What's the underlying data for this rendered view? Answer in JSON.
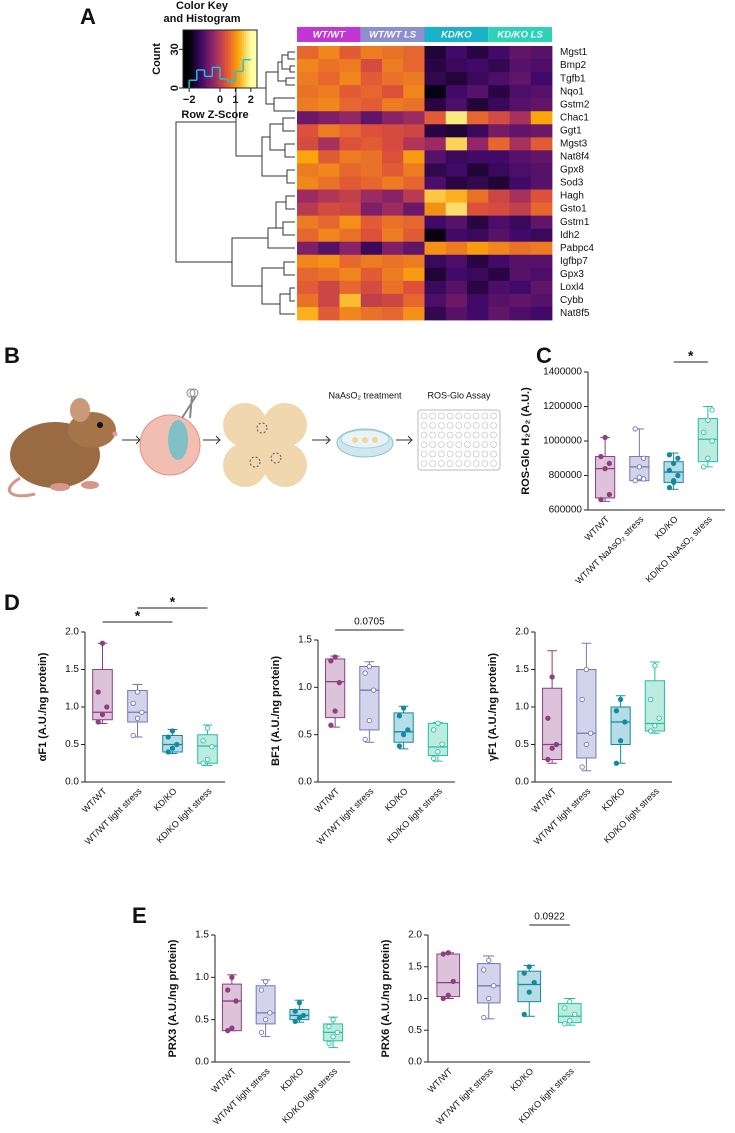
{
  "panels": [
    "A",
    "B",
    "C",
    "D",
    "E"
  ],
  "schematic": {
    "treatment": "NaAsO₂ treatment",
    "assay": "ROS-Glo Assay"
  },
  "chart_data": [
    {
      "type": "heatmap",
      "colormap": [
        "#000004",
        "#420a68",
        "#932667",
        "#dd513a",
        "#fca50a",
        "#fcffa4"
      ],
      "zlim": [
        -2,
        2
      ],
      "groups": [
        {
          "name": "WT/WT",
          "color": "#c236d6",
          "span": 3
        },
        {
          "name": "WT/WT LS",
          "color": "#8e8fcf",
          "span": 3
        },
        {
          "name": "KD/KO",
          "color": "#19b2c6",
          "span": 3
        },
        {
          "name": "KD/KO LS",
          "color": "#2dd3b7",
          "span": 3
        }
      ],
      "rows": [
        "Mgst1",
        "Bmp2",
        "Tgfb1",
        "Nqo1",
        "Gstm2",
        "Chac1",
        "Ggt1",
        "Mgst3",
        "Nat8f4",
        "Gpx8",
        "Sod3",
        "Hagh",
        "Gsto1",
        "Gstm1",
        "Idh2",
        "Pabpc4",
        "Igfbp7",
        "Gpx3",
        "Loxl4",
        "Cybb",
        "Nat8f5"
      ],
      "values": [
        [
          0.6,
          0.9,
          0.5,
          0.8,
          0.7,
          0.6,
          -1.6,
          -1.2,
          -1.5,
          -1.2,
          -0.9,
          -1.0
        ],
        [
          0.9,
          0.7,
          0.8,
          0.3,
          0.8,
          0.6,
          -1.5,
          -1.3,
          -1.2,
          -1.4,
          -1.0,
          -1.1
        ],
        [
          0.8,
          0.6,
          0.9,
          0.5,
          0.7,
          0.8,
          -1.4,
          -1.6,
          -1.3,
          -1.1,
          -0.9,
          -1.2
        ],
        [
          0.7,
          0.8,
          0.5,
          0.6,
          0.4,
          0.9,
          -1.9,
          -1.2,
          -1.0,
          -1.5,
          -1.1,
          -1.0
        ],
        [
          0.8,
          0.9,
          0.6,
          0.5,
          0.8,
          0.7,
          -1.5,
          -1.1,
          -1.6,
          -1.3,
          -1.0,
          -0.9
        ],
        [
          -0.8,
          -0.6,
          -0.4,
          -0.9,
          -0.5,
          -0.3,
          0.5,
          1.8,
          0.6,
          0.3,
          -0.2,
          1.2
        ],
        [
          0.4,
          0.8,
          0.6,
          0.4,
          0.3,
          0.2,
          -1.5,
          -1.6,
          -1.3,
          -0.7,
          -0.9,
          -0.8
        ],
        [
          0.3,
          -0.2,
          0.4,
          0.5,
          0.3,
          -0.1,
          -0.3,
          1.6,
          -0.4,
          0.6,
          -0.2,
          0.5
        ],
        [
          1.2,
          0.5,
          0.8,
          0.7,
          0.4,
          1.1,
          -1.0,
          -1.3,
          -1.2,
          -1.2,
          -1.0,
          -0.9
        ],
        [
          0.8,
          0.9,
          0.6,
          0.7,
          0.5,
          0.8,
          -1.4,
          -1.2,
          -1.6,
          -1.3,
          -1.1,
          -1.0
        ],
        [
          0.9,
          0.7,
          0.5,
          0.6,
          0.8,
          0.6,
          -1.1,
          -1.5,
          -1.4,
          -1.6,
          -1.2,
          -1.0
        ],
        [
          -0.3,
          -0.1,
          0.1,
          -0.3,
          -0.5,
          0.0,
          1.5,
          1.3,
          0.7,
          0.2,
          -0.2,
          0.4
        ],
        [
          0.0,
          0.3,
          0.2,
          -0.6,
          -0.3,
          -0.8,
          1.0,
          1.7,
          0.4,
          0.3,
          0.1,
          0.6
        ],
        [
          0.8,
          0.6,
          1.0,
          0.5,
          0.7,
          0.6,
          -1.2,
          -1.0,
          -1.5,
          -1.1,
          -1.3,
          -0.9
        ],
        [
          0.6,
          0.9,
          0.7,
          0.4,
          0.8,
          0.5,
          -1.9,
          -1.2,
          -1.3,
          -1.0,
          -1.2,
          -1.3
        ],
        [
          -0.6,
          -1.0,
          -0.5,
          -1.3,
          -0.6,
          -0.9,
          1.0,
          0.8,
          1.1,
          0.9,
          0.7,
          0.8
        ],
        [
          0.9,
          1.0,
          0.6,
          0.8,
          0.7,
          0.8,
          -1.3,
          -1.1,
          -1.5,
          -1.2,
          -1.0,
          -1.0
        ],
        [
          0.6,
          0.7,
          0.9,
          0.5,
          0.8,
          1.1,
          -1.6,
          -1.2,
          -1.3,
          -1.5,
          -1.0,
          -1.1
        ],
        [
          0.5,
          0.2,
          0.6,
          0.3,
          0.7,
          0.4,
          -1.3,
          -1.0,
          -1.5,
          -1.1,
          -1.2,
          -0.9
        ],
        [
          0.7,
          0.2,
          1.4,
          0.1,
          0.2,
          0.6,
          -1.1,
          -0.8,
          -1.2,
          -1.0,
          -0.9,
          -1.0
        ],
        [
          1.3,
          0.5,
          0.9,
          0.7,
          0.6,
          1.0,
          -1.4,
          -1.0,
          -1.2,
          -0.9,
          -1.1,
          -1.2
        ]
      ]
    },
    {
      "type": "histogram",
      "title_lines": [
        "Color Key",
        "and Histogram"
      ],
      "xlabel": "Row Z-Score",
      "ylabel": "Count",
      "color": "#1fc2d8",
      "bins": [
        -2,
        -1.5,
        -1,
        -0.5,
        0,
        0.5,
        1,
        1.5,
        2
      ],
      "counts": [
        6,
        14,
        9,
        16,
        7,
        5,
        13,
        22
      ],
      "xlim": [
        -2.4,
        2.4
      ],
      "ylim": [
        0,
        45
      ],
      "xticks": [
        {
          "value": -2,
          "label": "−2"
        },
        0,
        1,
        2
      ],
      "yticks": [
        0,
        30
      ]
    },
    {
      "type": "box",
      "ylabel": "ROS-Glo H₂O₂ (A.U.)",
      "categories": [
        "WT/WT",
        "WT/WT NaAsO₂ stress",
        "KD/KO",
        "KD/KO NaAsO₂ stress"
      ],
      "ylim": [
        600000,
        1400000
      ],
      "yticks": [
        600000,
        800000,
        1000000,
        1200000,
        1400000
      ],
      "series": [
        {
          "color": "#8e3f82",
          "fill": "#dcc3da",
          "marker": "filled",
          "min": 650000,
          "q1": 670000,
          "median": 840000,
          "q3": 910000,
          "max": 1020000,
          "points": [
            660000,
            840000,
            870000,
            910000,
            1020000,
            690000
          ]
        },
        {
          "color": "#7577b5",
          "fill": "#d3d4ec",
          "marker": "open",
          "min": 770000,
          "q1": 770000,
          "median": 850000,
          "q3": 910000,
          "max": 1070000,
          "points": [
            770000,
            850000,
            900000,
            1070000,
            790000,
            780000
          ]
        },
        {
          "color": "#17889f",
          "fill": "#b4dde6",
          "marker": "filled",
          "min": 720000,
          "q1": 760000,
          "median": 820000,
          "q3": 880000,
          "max": 930000,
          "points": [
            730000,
            770000,
            800000,
            830000,
            870000,
            900000,
            920000,
            760000
          ]
        },
        {
          "color": "#27bfa2",
          "fill": "#bcecdf",
          "marker": "open",
          "min": 850000,
          "q1": 880000,
          "median": 1010000,
          "q3": 1130000,
          "max": 1200000,
          "points": [
            850000,
            900000,
            1000000,
            1050000,
            1120000,
            1180000
          ]
        }
      ],
      "annotations": [
        {
          "from": 2,
          "to": 3,
          "label": "*"
        }
      ]
    },
    {
      "type": "box",
      "ylabel": "αF1 (A.U./ng protein)",
      "categories": [
        "WT/WT",
        "WT/WT light stress",
        "KD/KO",
        "KD/KO light stress"
      ],
      "ylim": [
        0,
        2
      ],
      "yticks": [
        {
          "value": 0,
          "label": "0.0"
        },
        0.5,
        {
          "value": 1,
          "label": "1.0"
        },
        1.5,
        {
          "value": 2,
          "label": "2.0"
        }
      ],
      "series": [
        {
          "color": "#8e3f82",
          "fill": "#dcc3da",
          "marker": "filled",
          "min": 0.78,
          "q1": 0.83,
          "median": 0.93,
          "q3": 1.5,
          "max": 1.85,
          "points": [
            0.8,
            0.9,
            1.0,
            1.2,
            1.85
          ]
        },
        {
          "color": "#7577b5",
          "fill": "#d3d4ec",
          "marker": "open",
          "min": 0.6,
          "q1": 0.8,
          "median": 0.93,
          "q3": 1.22,
          "max": 1.3,
          "points": [
            0.62,
            0.85,
            0.93,
            1.05,
            1.2
          ]
        },
        {
          "color": "#17889f",
          "fill": "#b4dde6",
          "marker": "filled",
          "min": 0.38,
          "q1": 0.4,
          "median": 0.5,
          "q3": 0.62,
          "max": 0.7,
          "points": [
            0.4,
            0.45,
            0.5,
            0.6,
            0.68
          ]
        },
        {
          "color": "#27bfa2",
          "fill": "#bcecdf",
          "marker": "open",
          "min": 0.22,
          "q1": 0.25,
          "median": 0.48,
          "q3": 0.63,
          "max": 0.76,
          "points": [
            0.25,
            0.3,
            0.47,
            0.55,
            0.72
          ]
        }
      ],
      "annotations": [
        {
          "from": 0,
          "to": 2,
          "label": "*"
        },
        {
          "from": 1,
          "to": 3,
          "label": "*"
        }
      ]
    },
    {
      "type": "box",
      "ylabel": "BF1 (A.U./ng protein)",
      "categories": [
        "WT/WT",
        "WT/WT light stress",
        "KD/KO",
        "KD/KO light stress"
      ],
      "ylim": [
        0,
        1.5
      ],
      "yticks": [
        {
          "value": 0,
          "label": "0.0"
        },
        0.5,
        {
          "value": 1,
          "label": "1.0"
        },
        1.5
      ],
      "series": [
        {
          "color": "#8e3f82",
          "fill": "#dcc3da",
          "marker": "filled",
          "min": 0.58,
          "q1": 0.68,
          "median": 1.06,
          "q3": 1.3,
          "max": 1.33,
          "points": [
            0.6,
            0.75,
            1.05,
            1.28,
            1.32
          ]
        },
        {
          "color": "#7577b5",
          "fill": "#d3d4ec",
          "marker": "open",
          "min": 0.42,
          "q1": 0.55,
          "median": 0.97,
          "q3": 1.22,
          "max": 1.27,
          "points": [
            0.45,
            0.65,
            0.97,
            1.15,
            1.22
          ]
        },
        {
          "color": "#17889f",
          "fill": "#b4dde6",
          "marker": "filled",
          "min": 0.35,
          "q1": 0.42,
          "median": 0.53,
          "q3": 0.73,
          "max": 0.8,
          "points": [
            0.38,
            0.5,
            0.55,
            0.7,
            0.78
          ]
        },
        {
          "color": "#27bfa2",
          "fill": "#bcecdf",
          "marker": "open",
          "min": 0.22,
          "q1": 0.28,
          "median": 0.37,
          "q3": 0.62,
          "max": 0.63,
          "points": [
            0.25,
            0.32,
            0.4,
            0.55,
            0.62
          ]
        }
      ],
      "annotations": [
        {
          "from": 0,
          "to": 2,
          "label": "0.0705"
        }
      ]
    },
    {
      "type": "box",
      "ylabel": "γF1 (A.U./ng protein)",
      "categories": [
        "WT/WT",
        "WT/WT light stress",
        "KD/KO",
        "KD/KO light stress"
      ],
      "ylim": [
        0,
        2
      ],
      "yticks": [
        {
          "value": 0,
          "label": "0.0"
        },
        0.5,
        {
          "value": 1,
          "label": "1.0"
        },
        1.5,
        {
          "value": 2,
          "label": "2.0"
        }
      ],
      "series": [
        {
          "color": "#8e3f82",
          "fill": "#dcc3da",
          "marker": "filled",
          "min": 0.25,
          "q1": 0.3,
          "median": 0.5,
          "q3": 1.25,
          "max": 1.75,
          "points": [
            0.3,
            0.45,
            0.5,
            0.85,
            1.4
          ]
        },
        {
          "color": "#7577b5",
          "fill": "#d3d4ec",
          "marker": "open",
          "min": 0.15,
          "q1": 0.32,
          "median": 0.65,
          "q3": 1.5,
          "max": 1.85,
          "points": [
            0.2,
            0.5,
            0.65,
            1.1,
            1.5
          ]
        },
        {
          "color": "#17889f",
          "fill": "#b4dde6",
          "marker": "filled",
          "min": 0.25,
          "q1": 0.5,
          "median": 0.8,
          "q3": 1.0,
          "max": 1.15,
          "points": [
            0.25,
            0.55,
            0.8,
            0.95,
            1.1
          ]
        },
        {
          "color": "#27bfa2",
          "fill": "#bcecdf",
          "marker": "open",
          "min": 0.65,
          "q1": 0.68,
          "median": 0.78,
          "q3": 1.35,
          "max": 1.6,
          "points": [
            0.68,
            0.75,
            0.85,
            1.1,
            1.55
          ]
        }
      ],
      "annotations": []
    },
    {
      "type": "box",
      "ylabel": "PRX3 (A.U./ng protein)",
      "categories": [
        "WT/WT",
        "WT/WT light stress",
        "KD/KO",
        "KD/KO light stress"
      ],
      "ylim": [
        0,
        1.5
      ],
      "yticks": [
        {
          "value": 0,
          "label": "0.0"
        },
        0.5,
        {
          "value": 1,
          "label": "1.0"
        },
        1.5
      ],
      "series": [
        {
          "color": "#8e3f82",
          "fill": "#dcc3da",
          "marker": "filled",
          "min": 0.37,
          "q1": 0.37,
          "median": 0.72,
          "q3": 0.92,
          "max": 1.03,
          "points": [
            0.37,
            0.4,
            0.72,
            0.85,
            1.0
          ]
        },
        {
          "color": "#7577b5",
          "fill": "#d3d4ec",
          "marker": "open",
          "min": 0.3,
          "q1": 0.45,
          "median": 0.58,
          "q3": 0.9,
          "max": 0.97,
          "points": [
            0.35,
            0.5,
            0.58,
            0.85,
            0.95
          ]
        },
        {
          "color": "#17889f",
          "fill": "#b4dde6",
          "marker": "filled",
          "min": 0.47,
          "q1": 0.5,
          "median": 0.55,
          "q3": 0.62,
          "max": 0.73,
          "points": [
            0.48,
            0.52,
            0.55,
            0.6,
            0.7
          ]
        },
        {
          "color": "#27bfa2",
          "fill": "#bcecdf",
          "marker": "open",
          "min": 0.17,
          "q1": 0.25,
          "median": 0.35,
          "q3": 0.45,
          "max": 0.53,
          "points": [
            0.22,
            0.3,
            0.35,
            0.42,
            0.5
          ]
        }
      ],
      "annotations": []
    },
    {
      "type": "box",
      "ylabel": "PRX6 (A.U./ng protein)",
      "categories": [
        "WT/WT",
        "WT/WT light stress",
        "KD/KO",
        "KD/KO light stress"
      ],
      "ylim": [
        0,
        2
      ],
      "yticks": [
        {
          "value": 0,
          "label": "0.0"
        },
        0.5,
        {
          "value": 1,
          "label": "1.0"
        },
        1.5,
        {
          "value": 2,
          "label": "2.0"
        }
      ],
      "series": [
        {
          "color": "#8e3f82",
          "fill": "#dcc3da",
          "marker": "filled",
          "min": 1.0,
          "q1": 1.03,
          "median": 1.25,
          "q3": 1.7,
          "max": 1.72,
          "points": [
            1.0,
            1.05,
            1.27,
            1.7,
            1.72
          ]
        },
        {
          "color": "#7577b5",
          "fill": "#d3d4ec",
          "marker": "open",
          "min": 0.68,
          "q1": 0.93,
          "median": 1.2,
          "q3": 1.55,
          "max": 1.67,
          "points": [
            0.7,
            1.0,
            1.2,
            1.45,
            1.6
          ]
        },
        {
          "color": "#17889f",
          "fill": "#b4dde6",
          "marker": "filled",
          "min": 0.72,
          "q1": 0.95,
          "median": 1.22,
          "q3": 1.43,
          "max": 1.52,
          "points": [
            0.75,
            1.1,
            1.25,
            1.4,
            1.5
          ]
        },
        {
          "color": "#27bfa2",
          "fill": "#bcecdf",
          "marker": "open",
          "min": 0.58,
          "q1": 0.62,
          "median": 0.72,
          "q3": 0.92,
          "max": 1.0,
          "points": [
            0.6,
            0.65,
            0.75,
            0.85,
            0.95
          ]
        }
      ],
      "annotations": [
        {
          "from": 2,
          "to": 3,
          "label": "0.0922"
        }
      ]
    }
  ]
}
